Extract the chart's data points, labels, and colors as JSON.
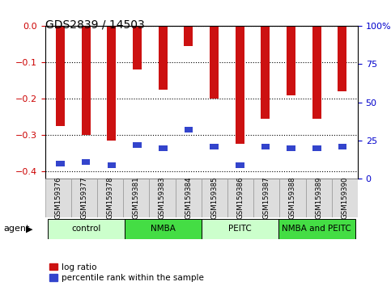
{
  "title": "GDS2839 / 14503",
  "samples": [
    "GSM159376",
    "GSM159377",
    "GSM159378",
    "GSM159381",
    "GSM159383",
    "GSM159384",
    "GSM159385",
    "GSM159386",
    "GSM159387",
    "GSM159388",
    "GSM159389",
    "GSM159390"
  ],
  "log_ratio": [
    -0.275,
    -0.3,
    -0.315,
    -0.12,
    -0.175,
    -0.055,
    -0.2,
    -0.325,
    -0.255,
    -0.19,
    -0.255,
    -0.18
  ],
  "percentile_rank_pct": [
    10,
    11,
    9,
    22,
    20,
    32,
    21,
    9,
    21,
    20,
    20,
    21
  ],
  "bar_color": "#cc1111",
  "blue_color": "#3344cc",
  "ylim_left": [
    -0.42,
    0.0
  ],
  "ylim_right": [
    0,
    100
  ],
  "yticks_left": [
    0.0,
    -0.1,
    -0.2,
    -0.3,
    -0.4
  ],
  "yticks_right": [
    0,
    25,
    50,
    75,
    100
  ],
  "groups": [
    {
      "label": "control",
      "start": 0,
      "end": 3,
      "color": "#ccffcc"
    },
    {
      "label": "NMBA",
      "start": 3,
      "end": 6,
      "color": "#44dd44"
    },
    {
      "label": "PEITC",
      "start": 6,
      "end": 9,
      "color": "#ccffcc"
    },
    {
      "label": "NMBA and PEITC",
      "start": 9,
      "end": 12,
      "color": "#44dd44"
    }
  ],
  "agent_label": "agent",
  "legend_red": "log ratio",
  "legend_blue": "percentile rank within the sample",
  "bar_width": 0.35,
  "bg_color": "#ffffff",
  "plot_bg": "#ffffff",
  "tick_label_color_left": "#cc0000",
  "tick_label_color_right": "#0000cc",
  "grid_color": "#000000",
  "label_bg": "#dddddd"
}
